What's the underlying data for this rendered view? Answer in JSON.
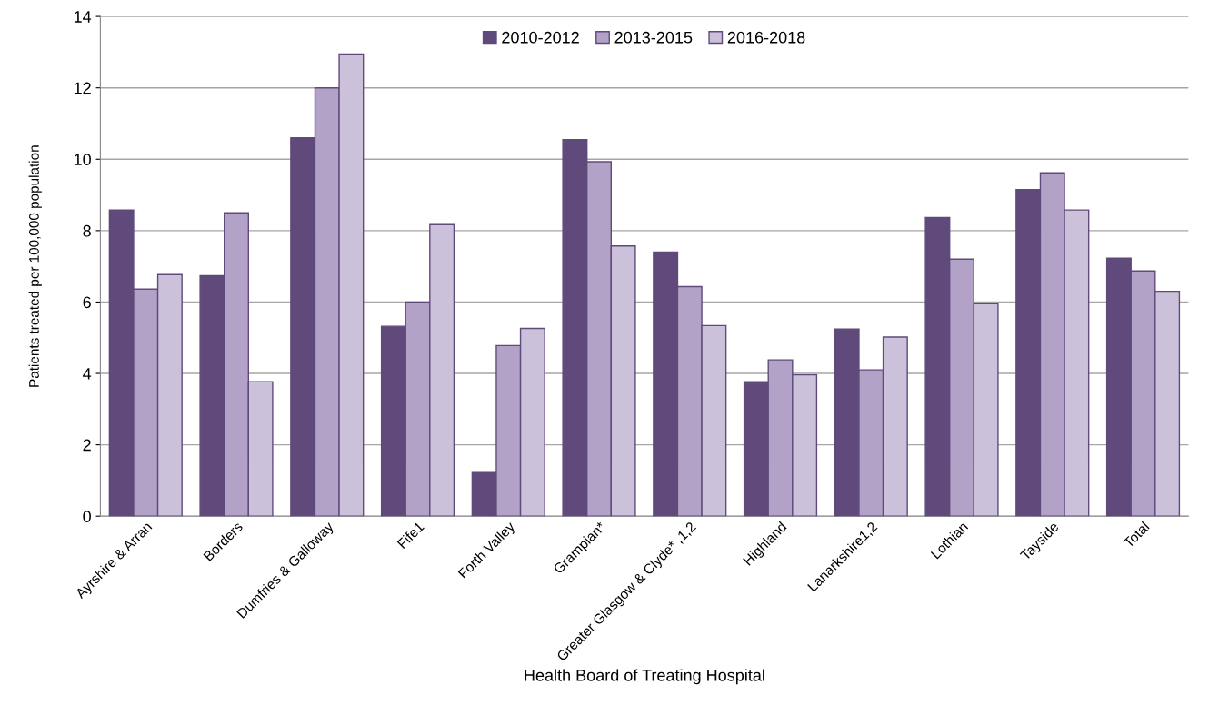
{
  "chart_data": {
    "type": "bar",
    "xlabel": "Health Board of Treating Hospital",
    "ylabel": "Patients treated per 100,000 population",
    "categories": [
      "Ayrshire & Arran",
      "Borders",
      "Dumfries & Galloway",
      "Fife1",
      "Forth Valley",
      "Grampian*",
      "Greater Glasgow & Clyde* ,1,2",
      "Highland",
      "Lanarkshire1,2",
      "Lothian",
      "Tayside",
      "Total"
    ],
    "series": [
      {
        "name": "2010-2012",
        "color": "#604a7b",
        "values": [
          8.58,
          6.74,
          10.6,
          5.32,
          1.25,
          10.55,
          7.4,
          3.77,
          5.24,
          8.37,
          9.15,
          7.23
        ]
      },
      {
        "name": "2013-2015",
        "color": "#b3a2c7",
        "values": [
          6.36,
          8.5,
          12.0,
          6.0,
          4.78,
          9.93,
          6.43,
          4.38,
          4.1,
          7.2,
          9.62,
          6.87
        ]
      },
      {
        "name": "2016-2018",
        "color": "#ccc1da",
        "values": [
          6.77,
          3.77,
          12.95,
          8.17,
          5.26,
          7.57,
          5.34,
          3.96,
          5.02,
          5.95,
          8.58,
          6.3
        ]
      }
    ],
    "ylim": [
      0,
      14
    ],
    "yticks": [
      0,
      2,
      4,
      6,
      8,
      10,
      12,
      14
    ],
    "grid": "y",
    "legend": "top"
  }
}
